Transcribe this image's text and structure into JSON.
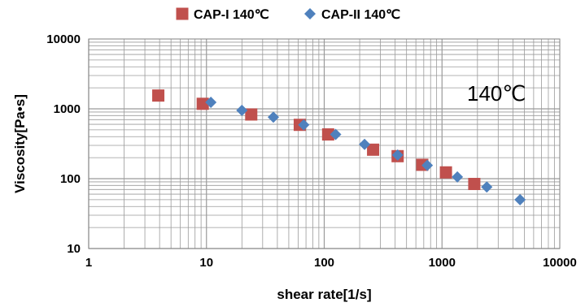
{
  "chart_data": {
    "type": "scatter",
    "xlabel": "shear rate[1/s]",
    "ylabel": "Viscosity[Pa•s]",
    "xscale": "log",
    "yscale": "log",
    "xlim": [
      1,
      10000
    ],
    "ylim": [
      10,
      10000
    ],
    "x_ticks": [
      "1",
      "10",
      "100",
      "1000",
      "10000"
    ],
    "y_ticks": [
      "10",
      "100",
      "1000",
      "10000"
    ],
    "grid": true,
    "legend_position": "top",
    "annotation": "140℃",
    "series": [
      {
        "name": "CAP-I 140℃",
        "marker": "square",
        "color": "#C0504D",
        "points": [
          [
            3.9,
            1550
          ],
          [
            9.3,
            1180
          ],
          [
            24,
            830
          ],
          [
            62,
            590
          ],
          [
            108,
            430
          ],
          [
            260,
            260
          ],
          [
            420,
            210
          ],
          [
            680,
            158
          ],
          [
            1080,
            123
          ],
          [
            1880,
            84
          ]
        ]
      },
      {
        "name": "CAP-II 140℃",
        "marker": "diamond",
        "color": "#4F81BD",
        "points": [
          [
            10.9,
            1240
          ],
          [
            20,
            950
          ],
          [
            37,
            760
          ],
          [
            67,
            590
          ],
          [
            125,
            430
          ],
          [
            220,
            310
          ],
          [
            420,
            218
          ],
          [
            750,
            155
          ],
          [
            1350,
            106
          ],
          [
            2400,
            76
          ],
          [
            4600,
            50
          ]
        ]
      }
    ]
  }
}
